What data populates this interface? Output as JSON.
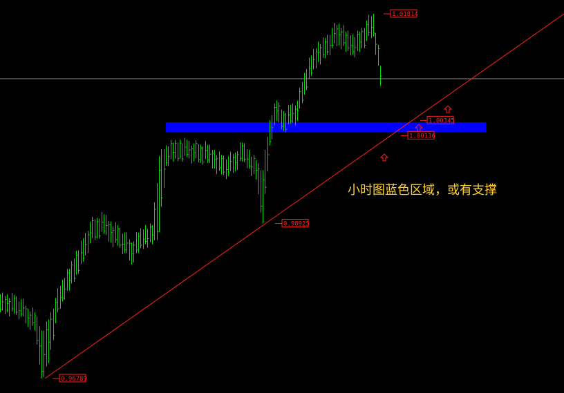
{
  "chart_data": {
    "type": "ohlc-bars",
    "colors": {
      "background": "#000000",
      "bars": "#00e000",
      "trendline": "#ff2020",
      "zone": "#0000ff",
      "hline": "#8a8a8a",
      "labels": "#ff2020",
      "annotation": "#ffd030"
    },
    "ylim": [
      0.9662,
      1.02
    ],
    "bars": [
      {
        "h": 0.9795,
        "l": 0.977
      },
      {
        "h": 0.9795,
        "l": 0.977
      },
      {
        "h": 0.9794,
        "l": 0.9768
      },
      {
        "h": 0.9788,
        "l": 0.9764
      },
      {
        "h": 0.9775,
        "l": 0.975
      },
      {
        "h": 0.977,
        "l": 0.9745
      },
      {
        "h": 0.9745,
        "l": 0.96789
      },
      {
        "h": 0.976,
        "l": 0.97
      },
      {
        "h": 0.979,
        "l": 0.9755
      },
      {
        "h": 0.9815,
        "l": 0.9785
      },
      {
        "h": 0.983,
        "l": 0.98
      },
      {
        "h": 0.9855,
        "l": 0.9822
      },
      {
        "h": 0.9872,
        "l": 0.984
      },
      {
        "h": 0.9895,
        "l": 0.9865
      },
      {
        "h": 0.99,
        "l": 0.9872
      },
      {
        "h": 0.9905,
        "l": 0.9878
      },
      {
        "h": 0.9895,
        "l": 0.9866
      },
      {
        "h": 0.989,
        "l": 0.9862
      },
      {
        "h": 0.988,
        "l": 0.9852
      },
      {
        "h": 0.9866,
        "l": 0.9836
      },
      {
        "h": 0.988,
        "l": 0.9852
      },
      {
        "h": 0.989,
        "l": 0.9864
      },
      {
        "h": 0.989,
        "l": 0.9864
      },
      {
        "h": 0.9985,
        "l": 0.988
      },
      {
        "h": 1.0,
        "l": 0.9972
      },
      {
        "h": 1.0004,
        "l": 0.9978
      },
      {
        "h": 1.0008,
        "l": 0.9982
      },
      {
        "h": 1.0008,
        "l": 0.9984
      },
      {
        "h": 1.0003,
        "l": 0.9978
      },
      {
        "h": 1.0001,
        "l": 0.9976
      },
      {
        "h": 1.0001,
        "l": 0.9976
      },
      {
        "h": 0.9994,
        "l": 0.9968
      },
      {
        "h": 0.9987,
        "l": 0.996
      },
      {
        "h": 0.9985,
        "l": 0.9958
      },
      {
        "h": 0.999,
        "l": 0.9964
      },
      {
        "h": 1.0004,
        "l": 0.9978
      },
      {
        "h": 0.9994,
        "l": 0.9968
      },
      {
        "h": 0.998,
        "l": 0.9953
      },
      {
        "h": 0.9966,
        "l": 0.98925
      },
      {
        "h": 1.0035,
        "l": 1.0
      },
      {
        "h": 1.0062,
        "l": 1.0034
      },
      {
        "h": 1.0047,
        "l": 1.002
      },
      {
        "h": 1.0056,
        "l": 1.003
      },
      {
        "h": 1.0062,
        "l": 1.0034
      },
      {
        "h": 1.01,
        "l": 1.007
      },
      {
        "h": 1.0124,
        "l": 1.0096
      },
      {
        "h": 1.0143,
        "l": 1.0115
      },
      {
        "h": 1.0148,
        "l": 1.012
      },
      {
        "h": 1.0162,
        "l": 1.0134
      },
      {
        "h": 1.0168,
        "l": 1.0138
      },
      {
        "h": 1.0157,
        "l": 1.0129
      },
      {
        "h": 1.0153,
        "l": 1.0125
      },
      {
        "h": 1.0157,
        "l": 1.0129
      },
      {
        "h": 1.0172,
        "l": 1.0144
      },
      {
        "h": 1.01814,
        "l": 1.015
      },
      {
        "h": 1.011,
        "l": 1.0082
      }
    ],
    "horizontal_line": 1.00919,
    "zone": {
      "high": 1.00319,
      "low": 1.00186
    },
    "trendline": {
      "from": {
        "bar": 6.5,
        "price": 0.96789
      },
      "to": {
        "bar": 81.6,
        "price": 1.01814
      }
    },
    "price_labels": [
      {
        "bar": 55.5,
        "price": 1.01814,
        "text": "1.01814"
      },
      {
        "bar": 39.8,
        "price": 0.98925,
        "text": "0.98925"
      },
      {
        "bar": 7.6,
        "price": 0.96789,
        "text": "0.96789"
      },
      {
        "bar": 60.8,
        "price": 1.00345,
        "text": "1.00345"
      },
      {
        "bar": 58.0,
        "price": 1.00136,
        "text": "1.00136"
      }
    ],
    "arrows_up": [
      {
        "bar": 64.8,
        "price": 1.005
      },
      {
        "bar": 60.6,
        "price": 1.00243
      },
      {
        "bar": 55.6,
        "price": 0.99834
      }
    ],
    "annotation": "小时图蓝色区域，或有支撑"
  }
}
